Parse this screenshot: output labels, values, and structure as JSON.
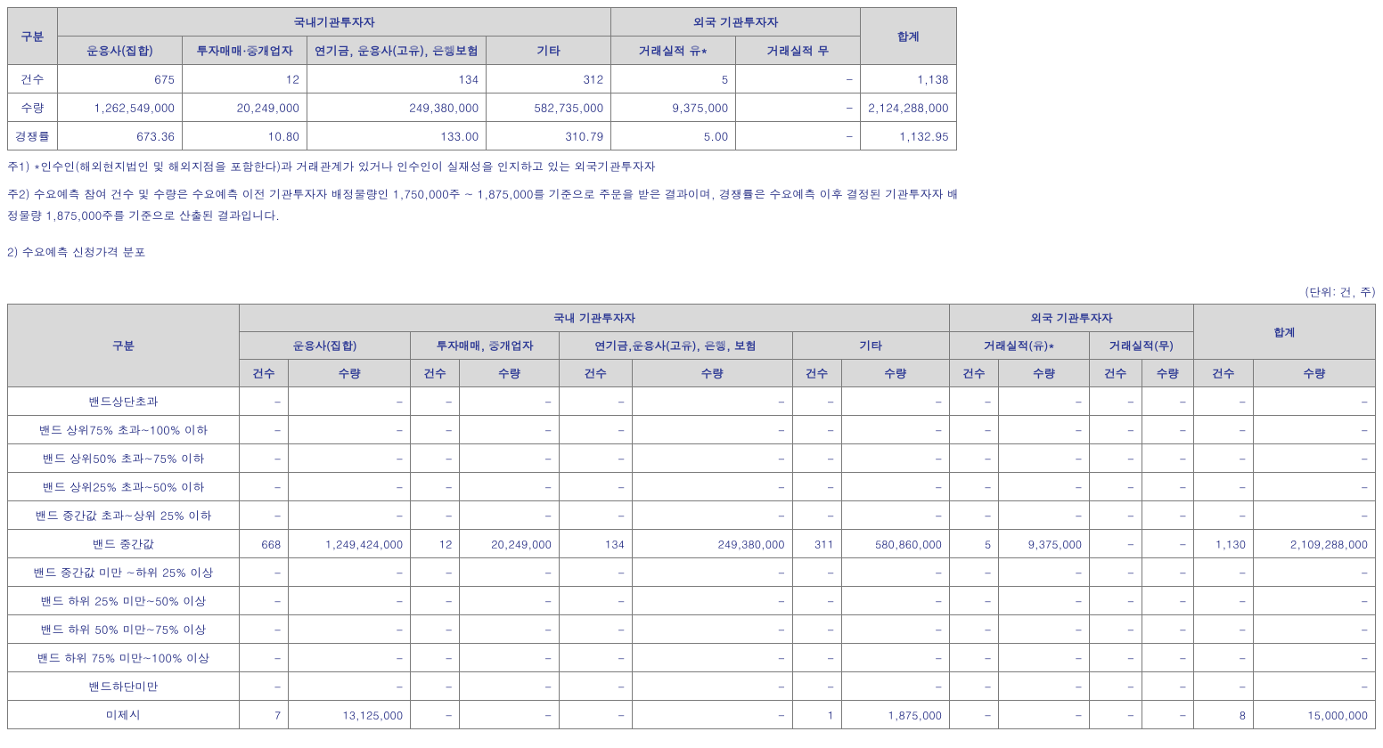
{
  "table1": {
    "headers": {
      "category": "구분",
      "domestic": "국내기관투자자",
      "foreign": "외국 기관투자자",
      "total": "합계",
      "sub": [
        "운용사(집합)",
        "투자매매·중개업자",
        "연기금, 운용사(고유), 은행보험",
        "기타",
        "거래실적 유*",
        "거래실적 무"
      ]
    },
    "rows": [
      {
        "label": "건수",
        "cells": [
          "675",
          "12",
          "134",
          "312",
          "5",
          "-",
          "1,138"
        ]
      },
      {
        "label": "수량",
        "cells": [
          "1,262,549,000",
          "20,249,000",
          "249,380,000",
          "582,735,000",
          "9,375,000",
          "-",
          "2,124,288,000"
        ]
      },
      {
        "label": "경쟁률",
        "cells": [
          "673.36",
          "10.80",
          "133.00",
          "310.79",
          "5.00",
          "-",
          "1,132.95"
        ]
      }
    ]
  },
  "notes": {
    "n1": "주1) *인수인(해외현지법인 및 해외지점을 포함한다)과 거래관계가 있거나 인수인이 실재성을 인지하고 있는 외국기관투자자",
    "n2": "주2) 수요예측 참여 건수 및 수량은 수요예측 이전 기관투자자 배정물량인 1,750,000주 ~ 1,875,000를 기준으로 주문을 받은 결과이며, 경쟁률은 수요예측 이후 결정된 기관투자자 배정물량 1,875,000주를 기준으로 산출된 결과입니다."
  },
  "section2": {
    "title": "2) 수요예측 신청가격 분포",
    "unit": "(단위: 건, 주)"
  },
  "table2": {
    "headers": {
      "category": "구분",
      "domestic": "국내 기관투자자",
      "foreign": "외국 기관투자자",
      "total": "합계",
      "groups": [
        "운용사(집합)",
        "투자매매, 중개업자",
        "연기금,운용사(고유), 은행, 보험",
        "기타",
        "거래실적(유)*",
        "거래실적(무)"
      ],
      "count": "건수",
      "qty": "수량"
    },
    "rowLabels": [
      "밴드상단초과",
      "밴드 상위75% 초과~100% 이하",
      "밴드 상위50% 초과~75% 이하",
      "밴드 상위25% 초과~50% 이하",
      "밴드 중간값 초과~상위 25% 이하",
      "밴드 중간값",
      "밴드 중간값 미만 ~하위 25% 이상",
      "밴드 하위 25% 미만~50% 이상",
      "밴드 하위 50% 미만~75% 이상",
      "밴드 하위 75% 미만~100% 이상",
      "밴드하단미만",
      "미제시"
    ],
    "rows": [
      [
        "-",
        "-",
        "-",
        "-",
        "-",
        "-",
        "-",
        "-",
        "-",
        "-",
        "-",
        "-",
        "-",
        "-"
      ],
      [
        "-",
        "-",
        "-",
        "-",
        "-",
        "-",
        "-",
        "-",
        "-",
        "-",
        "-",
        "-",
        "-",
        "-"
      ],
      [
        "-",
        "-",
        "-",
        "-",
        "-",
        "-",
        "-",
        "-",
        "-",
        "-",
        "-",
        "-",
        "-",
        "-"
      ],
      [
        "-",
        "-",
        "-",
        "-",
        "-",
        "-",
        "-",
        "-",
        "-",
        "-",
        "-",
        "-",
        "-",
        "-"
      ],
      [
        "-",
        "-",
        "-",
        "-",
        "-",
        "-",
        "-",
        "-",
        "-",
        "-",
        "-",
        "-",
        "-",
        "-"
      ],
      [
        "668",
        "1,249,424,000",
        "12",
        "20,249,000",
        "134",
        "249,380,000",
        "311",
        "580,860,000",
        "5",
        "9,375,000",
        "-",
        "-",
        "1,130",
        "2,109,288,000"
      ],
      [
        "-",
        "-",
        "-",
        "-",
        "-",
        "-",
        "-",
        "-",
        "-",
        "-",
        "-",
        "-",
        "-",
        "-"
      ],
      [
        "-",
        "-",
        "-",
        "-",
        "-",
        "-",
        "-",
        "-",
        "-",
        "-",
        "-",
        "-",
        "-",
        "-"
      ],
      [
        "-",
        "-",
        "-",
        "-",
        "-",
        "-",
        "-",
        "-",
        "-",
        "-",
        "-",
        "-",
        "-",
        "-"
      ],
      [
        "-",
        "-",
        "-",
        "-",
        "-",
        "-",
        "-",
        "-",
        "-",
        "-",
        "-",
        "-",
        "-",
        "-"
      ],
      [
        "-",
        "-",
        "-",
        "-",
        "-",
        "-",
        "-",
        "-",
        "-",
        "-",
        "-",
        "-",
        "-",
        "-"
      ],
      [
        "7",
        "13,125,000",
        "-",
        "-",
        "-",
        "-",
        "1",
        "1,875,000",
        "-",
        "-",
        "-",
        "-",
        "8",
        "15,000,000"
      ]
    ]
  }
}
